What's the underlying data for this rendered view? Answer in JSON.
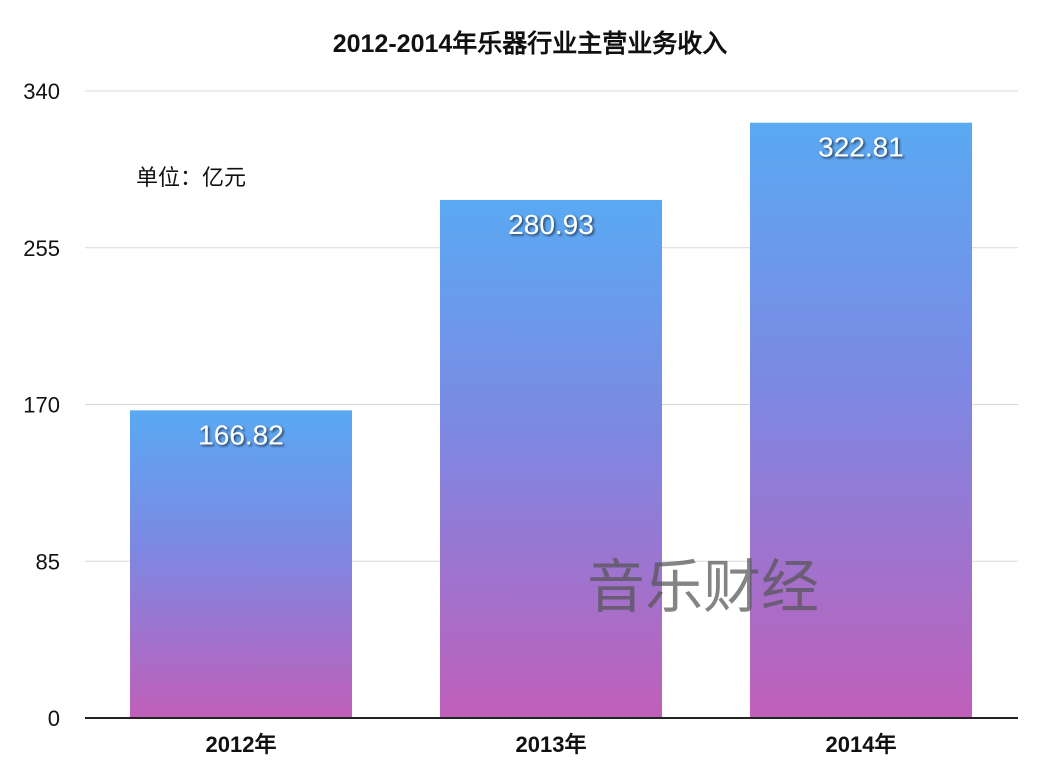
{
  "chart_data": {
    "type": "bar",
    "title": "2012-2014年乐器行业主营业务收入",
    "unit_label": "单位：亿元",
    "watermark": "音乐财经",
    "categories": [
      "2012年",
      "2013年",
      "2014年"
    ],
    "values": [
      166.82,
      280.93,
      322.81
    ],
    "value_labels": [
      "166.82",
      "280.93",
      "322.81"
    ],
    "yticks": [
      0,
      85,
      170,
      255,
      340
    ],
    "ytick_labels": [
      "0",
      "85",
      "170",
      "255",
      "340"
    ],
    "ylim": [
      0,
      340
    ],
    "grid": true,
    "colors": {
      "bar_top": "#5aa9f3",
      "bar_mid": "#7d88e3",
      "bar_bottom": "#c05fb9",
      "grid": "#d9d9d9",
      "axis": "#222222",
      "text": "#111111",
      "value_label": "#ffffff",
      "watermark": "#555555"
    }
  }
}
